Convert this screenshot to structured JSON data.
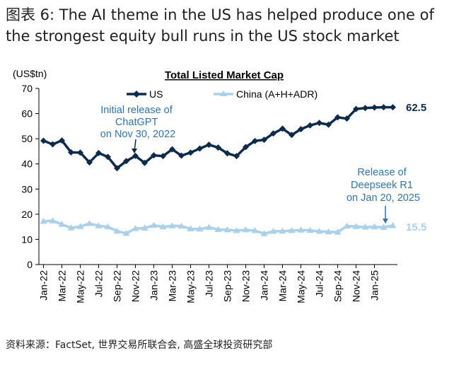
{
  "figure": {
    "title_line1": "图表 6: The AI theme in the US has helped produce one of",
    "title_line2": "the strongest equity bull runs in the US stock market",
    "source": "资料来源：FactSet, 世界交易所联合会, 高盛全球投资研究部"
  },
  "colors": {
    "us": "#0d2b4e",
    "china": "#a8d1ee",
    "annotation": "#2e74b5"
  },
  "chart_data": {
    "type": "line",
    "title": "Total Listed Market Cap",
    "ylabel": "(US$tn)",
    "xlabel": "",
    "ylim": [
      0,
      70
    ],
    "yticks": [
      0,
      10,
      20,
      30,
      40,
      50,
      60,
      70
    ],
    "grid": false,
    "legend_position": "top",
    "x": [
      "Jan-22",
      "Feb-22",
      "Mar-22",
      "Apr-22",
      "May-22",
      "Jun-22",
      "Jul-22",
      "Aug-22",
      "Sep-22",
      "Oct-22",
      "Nov-22",
      "Dec-22",
      "Jan-23",
      "Feb-23",
      "Mar-23",
      "Apr-23",
      "May-23",
      "Jun-23",
      "Jul-23",
      "Aug-23",
      "Sep-23",
      "Oct-23",
      "Nov-23",
      "Dec-23",
      "Jan-24",
      "Feb-24",
      "Mar-24",
      "Apr-24",
      "May-24",
      "Jun-24",
      "Jul-24",
      "Aug-24",
      "Sep-24",
      "Oct-24",
      "Nov-24",
      "Dec-24",
      "Jan-25",
      "Feb-25",
      "Mar-25"
    ],
    "xtick_labels": [
      "Jan-22",
      "Mar-22",
      "May-22",
      "Jul-22",
      "Sep-22",
      "Nov-22",
      "Jan-23",
      "Mar-23",
      "May-23",
      "Jul-23",
      "Sep-23",
      "Nov-23",
      "Jan-24",
      "Mar-24",
      "May-24",
      "Jul-24",
      "Sep-24",
      "Nov-24",
      "Jan-25"
    ],
    "series": [
      {
        "name": "US",
        "end_label": "62.5",
        "values": [
          49.2,
          47.8,
          49.3,
          44.6,
          44.5,
          40.6,
          44.3,
          42.8,
          38.3,
          41.1,
          43.2,
          40.4,
          43.4,
          43.1,
          45.8,
          43.3,
          44.5,
          46.1,
          47.6,
          46.5,
          44.2,
          43.1,
          46.7,
          49.1,
          49.6,
          52.1,
          54.0,
          51.5,
          53.8,
          55.3,
          56.3,
          55.6,
          58.5,
          58.0,
          61.8,
          62.2,
          62.4,
          62.5,
          62.5
        ]
      },
      {
        "name": "China (A+H+ADR)",
        "end_label": "15.5",
        "values": [
          17.2,
          17.4,
          16.0,
          14.6,
          15.1,
          16.3,
          15.4,
          15.0,
          13.3,
          12.4,
          14.3,
          14.5,
          15.6,
          15.0,
          15.4,
          15.3,
          14.2,
          14.1,
          14.8,
          13.9,
          13.8,
          13.5,
          13.8,
          13.5,
          12.3,
          13.2,
          13.3,
          13.5,
          13.7,
          13.6,
          13.2,
          13.0,
          12.9,
          15.3,
          15.1,
          14.9,
          15.0,
          14.8,
          15.5
        ]
      }
    ],
    "annotations": [
      {
        "text_lines": [
          "Initial release of",
          "ChatGPT",
          "on Nov 30, 2022"
        ],
        "at_x": "Nov-22"
      },
      {
        "text_lines": [
          "Release of",
          "Deepseek R1",
          "on Jan 20, 2025"
        ],
        "at_x": "Jan-25"
      }
    ]
  }
}
